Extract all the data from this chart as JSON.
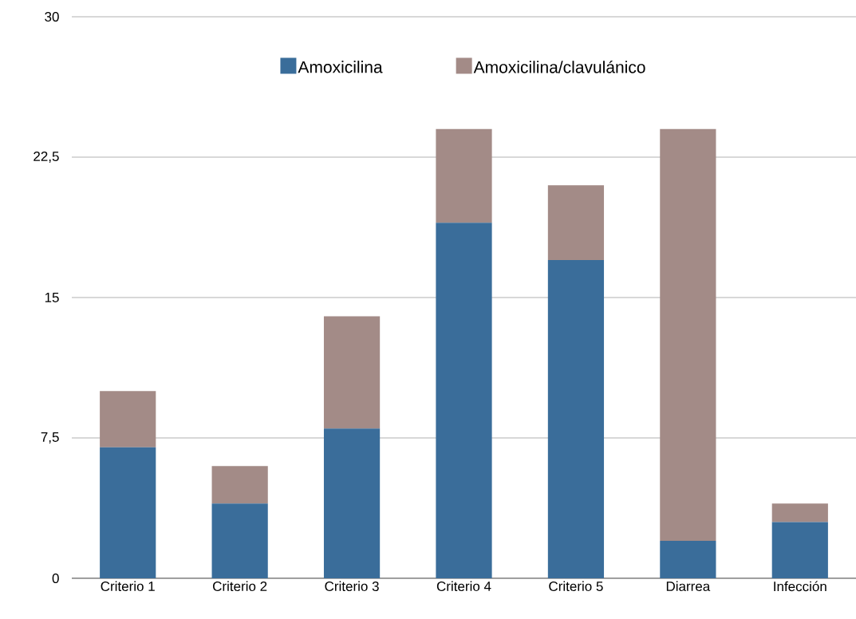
{
  "chart_data": {
    "type": "bar",
    "stacked": true,
    "categories": [
      "Criterio 1",
      "Criterio 2",
      "Criterio 3",
      "Criterio 4",
      "Criterio 5",
      "Diarrea",
      "Infección"
    ],
    "series": [
      {
        "name": "Amoxicilina",
        "color": "#3a6d9a",
        "values": [
          7,
          4,
          8,
          19,
          17,
          2,
          3
        ]
      },
      {
        "name": "Amoxicilina/clavulánico",
        "color": "#a38b87",
        "values": [
          3,
          2,
          6,
          5,
          4,
          22,
          1
        ]
      }
    ],
    "ylim": [
      0,
      30
    ],
    "yticks": [
      0,
      {
        "value": 7.5,
        "label": "7,5"
      },
      15,
      {
        "value": 22.5,
        "label": "22,5"
      },
      30
    ],
    "grid": "y",
    "legend": "top"
  }
}
